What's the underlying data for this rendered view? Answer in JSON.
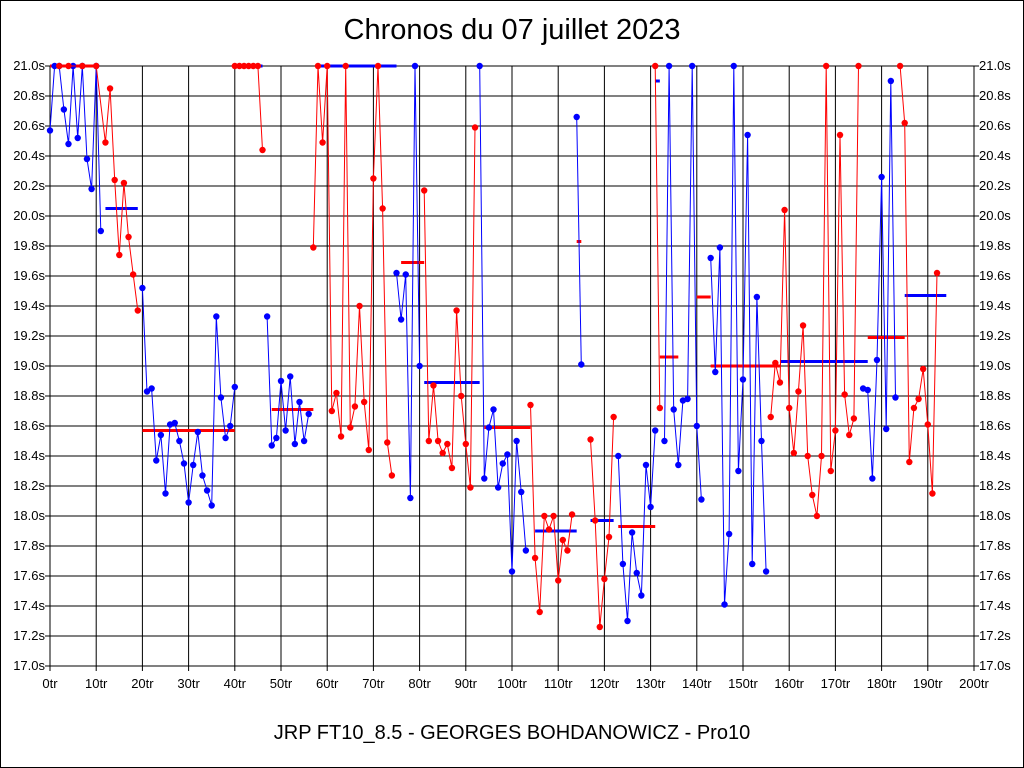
{
  "chart_data": {
    "type": "line",
    "title": "Chronos du 07 juillet 2023",
    "subtitle": "JRP FT10_8.5 - GEORGES BOHDANOWICZ - Pro10",
    "xlim": [
      0,
      200
    ],
    "ylim": [
      17.0,
      21.0
    ],
    "grid": true,
    "x_tick_labels": [
      "0tr",
      "10tr",
      "20tr",
      "30tr",
      "40tr",
      "50tr",
      "60tr",
      "70tr",
      "80tr",
      "90tr",
      "100tr",
      "110tr",
      "120tr",
      "130tr",
      "140tr",
      "150tr",
      "160tr",
      "170tr",
      "180tr",
      "190tr",
      "200tr"
    ],
    "y_tick_labels": [
      "17.0s",
      "17.2s",
      "17.4s",
      "17.6s",
      "17.8s",
      "18.0s",
      "18.2s",
      "18.4s",
      "18.6s",
      "18.8s",
      "19.0s",
      "19.2s",
      "19.4s",
      "19.6s",
      "19.8s",
      "20.0s",
      "20.2s",
      "20.4s",
      "20.6s",
      "20.8s",
      "21.0s"
    ],
    "colors": {
      "blue": "#0000ff",
      "red": "#ff0000"
    },
    "series": [
      {
        "color": "blue",
        "points": [
          [
            0,
            20.57
          ],
          [
            1,
            21.0
          ],
          [
            2,
            21.0
          ],
          [
            3,
            20.71
          ],
          [
            4,
            20.48
          ],
          [
            5,
            21.0
          ],
          [
            6,
            20.52
          ],
          [
            7,
            21.0
          ],
          [
            8,
            20.38
          ],
          [
            9,
            20.18
          ],
          [
            10,
            21.0
          ],
          [
            11,
            19.9
          ]
        ]
      },
      {
        "color": "red",
        "points": [
          [
            2,
            21.0
          ],
          [
            4,
            21.0
          ],
          [
            7,
            21.0
          ],
          [
            10,
            21.0
          ],
          [
            12,
            20.49
          ],
          [
            13,
            20.85
          ],
          [
            14,
            20.24
          ],
          [
            15,
            19.74
          ],
          [
            16,
            20.22
          ],
          [
            17,
            19.86
          ],
          [
            18,
            19.61
          ],
          [
            19,
            19.37
          ]
        ]
      },
      {
        "color": "blue",
        "points": [
          [
            20,
            19.52
          ],
          [
            21,
            18.83
          ],
          [
            22,
            18.85
          ],
          [
            23,
            18.37
          ],
          [
            24,
            18.54
          ],
          [
            25,
            18.15
          ],
          [
            26,
            18.61
          ],
          [
            27,
            18.62
          ],
          [
            28,
            18.5
          ],
          [
            29,
            18.35
          ],
          [
            30,
            18.09
          ],
          [
            31,
            18.34
          ],
          [
            32,
            18.56
          ],
          [
            33,
            18.27
          ],
          [
            34,
            18.17
          ],
          [
            35,
            18.07
          ],
          [
            36,
            19.33
          ],
          [
            37,
            18.79
          ],
          [
            38,
            18.52
          ],
          [
            39,
            18.6
          ],
          [
            40,
            18.86
          ]
        ]
      },
      {
        "color": "red",
        "points": [
          [
            40,
            21.0
          ],
          [
            41,
            21.0
          ],
          [
            42,
            21.0
          ],
          [
            43,
            21.0
          ],
          [
            44,
            21.0
          ],
          [
            45,
            21.0
          ],
          [
            46,
            20.44
          ]
        ]
      },
      {
        "color": "blue",
        "points": [
          [
            47,
            19.33
          ],
          [
            48,
            18.47
          ],
          [
            49,
            18.52
          ],
          [
            50,
            18.9
          ],
          [
            51,
            18.57
          ],
          [
            52,
            18.93
          ],
          [
            53,
            18.48
          ],
          [
            54,
            18.76
          ],
          [
            55,
            18.5
          ],
          [
            56,
            18.68
          ]
        ]
      },
      {
        "color": "red",
        "points": [
          [
            57,
            19.79
          ],
          [
            58,
            21.0
          ],
          [
            59,
            20.49
          ],
          [
            60,
            21.0
          ],
          [
            61,
            18.7
          ],
          [
            62,
            18.82
          ],
          [
            63,
            18.53
          ],
          [
            64,
            21.0
          ],
          [
            65,
            18.59
          ],
          [
            66,
            18.73
          ],
          [
            67,
            19.4
          ],
          [
            68,
            18.76
          ],
          [
            69,
            18.44
          ],
          [
            70,
            20.25
          ],
          [
            71,
            21.0
          ],
          [
            72,
            20.05
          ],
          [
            73,
            18.49
          ],
          [
            74,
            18.27
          ]
        ]
      },
      {
        "color": "blue",
        "points": [
          [
            75,
            19.62
          ],
          [
            76,
            19.31
          ],
          [
            77,
            19.61
          ],
          [
            78,
            18.12
          ],
          [
            79,
            21.0
          ],
          [
            80,
            19.0
          ]
        ]
      },
      {
        "color": "red",
        "points": [
          [
            81,
            20.17
          ],
          [
            82,
            18.5
          ],
          [
            83,
            18.87
          ],
          [
            84,
            18.5
          ],
          [
            85,
            18.42
          ],
          [
            86,
            18.48
          ],
          [
            87,
            18.32
          ],
          [
            88,
            19.37
          ],
          [
            89,
            18.8
          ],
          [
            90,
            18.48
          ],
          [
            91,
            18.19
          ],
          [
            92,
            20.59
          ]
        ]
      },
      {
        "color": "blue",
        "points": [
          [
            93,
            21.0
          ],
          [
            94,
            18.25
          ],
          [
            95,
            18.59
          ],
          [
            96,
            18.71
          ],
          [
            97,
            18.19
          ],
          [
            98,
            18.35
          ],
          [
            99,
            18.41
          ],
          [
            100,
            17.63
          ],
          [
            101,
            18.5
          ],
          [
            102,
            18.16
          ],
          [
            103,
            17.77
          ]
        ]
      },
      {
        "color": "red",
        "points": [
          [
            104,
            18.74
          ],
          [
            105,
            17.72
          ],
          [
            106,
            17.36
          ],
          [
            107,
            18.0
          ],
          [
            108,
            17.91
          ],
          [
            109,
            18.0
          ],
          [
            110,
            17.57
          ],
          [
            111,
            17.84
          ],
          [
            112,
            17.77
          ],
          [
            113,
            18.01
          ]
        ]
      },
      {
        "color": "blue",
        "points": [
          [
            114,
            20.66
          ],
          [
            115,
            19.01
          ]
        ]
      },
      {
        "color": "red",
        "points": [
          [
            117,
            18.51
          ],
          [
            118,
            17.97
          ],
          [
            119,
            17.26
          ],
          [
            120,
            17.58
          ],
          [
            121,
            17.86
          ],
          [
            122,
            18.66
          ]
        ]
      },
      {
        "color": "blue",
        "points": [
          [
            123,
            18.4
          ],
          [
            124,
            17.68
          ],
          [
            125,
            17.3
          ],
          [
            126,
            17.89
          ],
          [
            127,
            17.62
          ],
          [
            128,
            17.47
          ],
          [
            129,
            18.34
          ],
          [
            130,
            18.06
          ],
          [
            131,
            18.57
          ]
        ]
      },
      {
        "color": "red",
        "points": [
          [
            131,
            21.0
          ],
          [
            132,
            18.72
          ]
        ]
      },
      {
        "color": "blue",
        "points": [
          [
            133,
            18.5
          ],
          [
            134,
            21.0
          ],
          [
            135,
            18.71
          ],
          [
            136,
            18.34
          ],
          [
            137,
            18.77
          ],
          [
            138,
            18.78
          ],
          [
            139,
            21.0
          ],
          [
            140,
            18.6
          ],
          [
            141,
            18.11
          ]
        ]
      },
      {
        "color": "blue",
        "points": [
          [
            143,
            19.72
          ],
          [
            144,
            18.96
          ],
          [
            145,
            19.79
          ],
          [
            146,
            17.41
          ],
          [
            147,
            17.88
          ],
          [
            148,
            21.0
          ],
          [
            149,
            18.3
          ],
          [
            150,
            18.91
          ],
          [
            151,
            20.54
          ],
          [
            152,
            17.68
          ],
          [
            153,
            19.46
          ],
          [
            154,
            18.5
          ],
          [
            155,
            17.63
          ]
        ]
      },
      {
        "color": "red",
        "points": [
          [
            156,
            18.66
          ],
          [
            157,
            19.02
          ],
          [
            158,
            18.89
          ],
          [
            159,
            20.04
          ],
          [
            160,
            18.72
          ],
          [
            161,
            18.42
          ],
          [
            162,
            18.83
          ],
          [
            163,
            19.27
          ],
          [
            164,
            18.4
          ],
          [
            165,
            18.14
          ],
          [
            166,
            18.0
          ],
          [
            167,
            18.4
          ],
          [
            168,
            21.0
          ],
          [
            169,
            18.3
          ],
          [
            170,
            18.57
          ],
          [
            171,
            20.54
          ],
          [
            172,
            18.81
          ],
          [
            173,
            18.54
          ],
          [
            174,
            18.65
          ],
          [
            175,
            21.0
          ]
        ]
      },
      {
        "color": "blue",
        "points": [
          [
            176,
            18.85
          ],
          [
            177,
            18.84
          ],
          [
            178,
            18.25
          ],
          [
            179,
            19.04
          ],
          [
            180,
            20.26
          ],
          [
            181,
            18.58
          ],
          [
            182,
            20.9
          ],
          [
            183,
            18.79
          ]
        ]
      },
      {
        "color": "red",
        "points": [
          [
            184,
            21.0
          ],
          [
            185,
            20.62
          ],
          [
            186,
            18.36
          ],
          [
            187,
            18.72
          ],
          [
            188,
            18.78
          ],
          [
            189,
            18.98
          ],
          [
            190,
            18.61
          ],
          [
            191,
            18.15
          ],
          [
            192,
            19.62
          ]
        ]
      }
    ],
    "averages": [
      {
        "color": "red",
        "x": [
          0,
          10
        ],
        "y": 21.0
      },
      {
        "color": "blue",
        "x": [
          12,
          19
        ],
        "y": 20.05
      },
      {
        "color": "red",
        "x": [
          20,
          40
        ],
        "y": 18.57
      },
      {
        "color": "blue",
        "x": [
          40,
          46
        ],
        "y": 21.0
      },
      {
        "color": "red",
        "x": [
          48,
          57
        ],
        "y": 18.71
      },
      {
        "color": "blue",
        "x": [
          58,
          75
        ],
        "y": 21.0
      },
      {
        "color": "red",
        "x": [
          76,
          81
        ],
        "y": 19.69
      },
      {
        "color": "blue",
        "x": [
          81,
          93
        ],
        "y": 18.89
      },
      {
        "color": "red",
        "x": [
          94,
          104
        ],
        "y": 18.59
      },
      {
        "color": "blue",
        "x": [
          105,
          114
        ],
        "y": 17.9
      },
      {
        "color": "red",
        "x": [
          114,
          115
        ],
        "y": 19.83
      },
      {
        "color": "blue",
        "x": [
          117,
          122
        ],
        "y": 17.97
      },
      {
        "color": "red",
        "x": [
          123,
          131
        ],
        "y": 17.93
      },
      {
        "color": "blue",
        "x": [
          131,
          132
        ],
        "y": 20.9
      },
      {
        "color": "red",
        "x": [
          132,
          136
        ],
        "y": 19.06
      },
      {
        "color": "red",
        "x": [
          140,
          143
        ],
        "y": 19.46
      },
      {
        "color": "red",
        "x": [
          143,
          158
        ],
        "y": 19.0
      },
      {
        "color": "blue",
        "x": [
          158,
          177
        ],
        "y": 19.03
      },
      {
        "color": "red",
        "x": [
          177,
          185
        ],
        "y": 19.19
      },
      {
        "color": "blue",
        "x": [
          185,
          194
        ],
        "y": 19.47
      }
    ]
  }
}
